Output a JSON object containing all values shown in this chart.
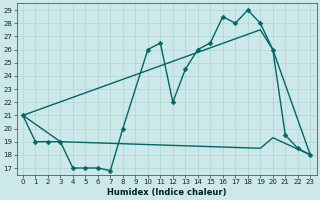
{
  "xlabel": "Humidex (Indice chaleur)",
  "xlim": [
    -0.5,
    23.5
  ],
  "ylim": [
    16.5,
    29.5
  ],
  "yticks": [
    17,
    18,
    19,
    20,
    21,
    22,
    23,
    24,
    25,
    26,
    27,
    28,
    29
  ],
  "xticks": [
    0,
    1,
    2,
    3,
    4,
    5,
    6,
    7,
    8,
    9,
    10,
    11,
    12,
    13,
    14,
    15,
    16,
    17,
    18,
    19,
    20,
    21,
    22,
    23
  ],
  "bg_color": "#cce8e8",
  "line_color": "#006666",
  "line1_x": [
    0,
    1,
    2,
    3,
    4,
    5,
    6,
    7,
    8,
    10,
    11,
    12,
    13,
    14,
    15,
    16,
    17,
    18,
    19,
    20,
    21,
    22,
    23
  ],
  "line1_y": [
    21,
    19,
    19,
    19,
    17,
    17,
    17,
    16.8,
    20,
    26,
    26.5,
    22,
    24.5,
    26,
    26.5,
    28.5,
    28,
    29,
    28,
    26,
    19.5,
    18.5,
    18
  ],
  "line2_x": [
    0,
    19,
    20,
    23
  ],
  "line2_y": [
    21,
    27.5,
    26,
    18
  ],
  "line3_x": [
    0,
    3,
    19,
    20,
    23
  ],
  "line3_y": [
    21,
    19,
    18.5,
    19.3,
    18
  ],
  "markersize": 2.5,
  "linewidth": 1.0
}
